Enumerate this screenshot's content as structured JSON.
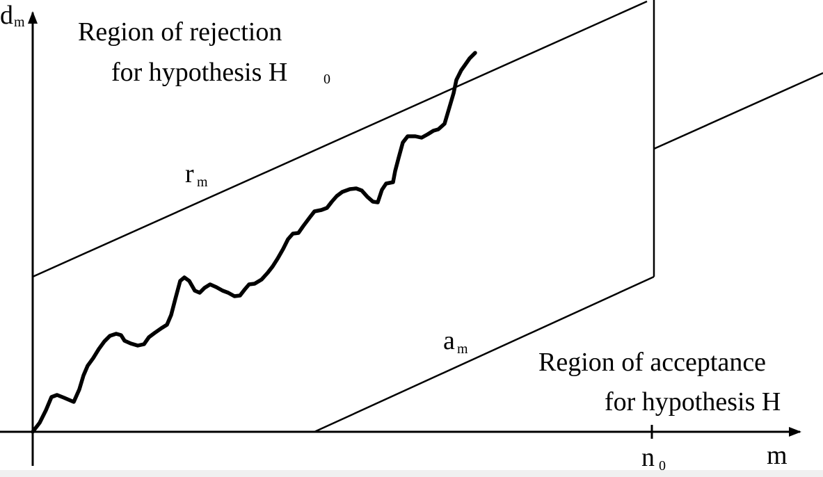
{
  "diagram": {
    "y_axis_label": {
      "main": "d",
      "sub": "m"
    },
    "x_axis_label": "m",
    "n0_label": {
      "main": "n",
      "sub": "0"
    },
    "upper_line_label": {
      "main": "r",
      "sub": "m"
    },
    "lower_line_label": {
      "main": "a",
      "sub": "m"
    },
    "rejection_region": {
      "line1": "Region of rejection",
      "line2_text": "for hypothesis H",
      "line2_sub": "0"
    },
    "acceptance_region": {
      "line1": "Region of acceptance",
      "line2": "for hypothesis H"
    }
  }
}
